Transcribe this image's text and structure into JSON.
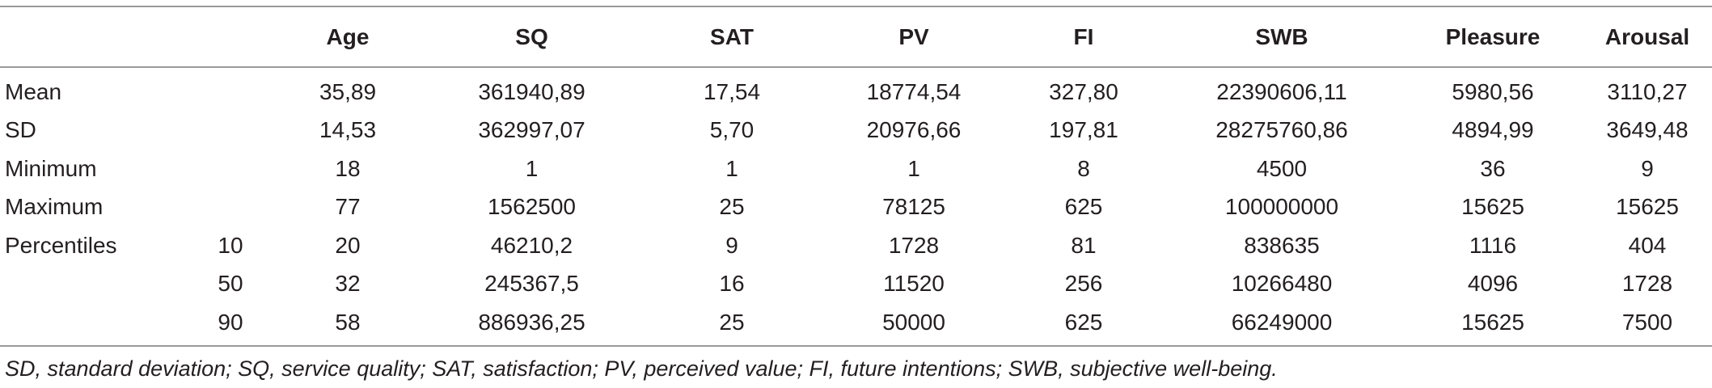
{
  "table": {
    "columns": [
      "",
      "",
      "Age",
      "SQ",
      "SAT",
      "PV",
      "FI",
      "SWB",
      "Pleasure",
      "Arousal"
    ],
    "rows": [
      [
        "Mean",
        "",
        "35,89",
        "361940,89",
        "17,54",
        "18774,54",
        "327,80",
        "22390606,11",
        "5980,56",
        "3110,27"
      ],
      [
        "SD",
        "",
        "14,53",
        "362997,07",
        "5,70",
        "20976,66",
        "197,81",
        "28275760,86",
        "4894,99",
        "3649,48"
      ],
      [
        "Minimum",
        "",
        "18",
        "1",
        "1",
        "1",
        "8",
        "4500",
        "36",
        "9"
      ],
      [
        "Maximum",
        "",
        "77",
        "1562500",
        "25",
        "78125",
        "625",
        "100000000",
        "15625",
        "15625"
      ],
      [
        "Percentiles",
        "10",
        "20",
        "46210,2",
        "9",
        "1728",
        "81",
        "838635",
        "1116",
        "404"
      ],
      [
        "",
        "50",
        "32",
        "245367,5",
        "16",
        "11520",
        "256",
        "10266480",
        "4096",
        "1728"
      ],
      [
        "",
        "90",
        "58",
        "886936,25",
        "25",
        "50000",
        "625",
        "66249000",
        "15625",
        "7500"
      ]
    ]
  },
  "footnote": "SD, standard deviation; SQ, service quality; SAT, satisfaction; PV, perceived value; FI, future intentions; SWB, subjective well-being."
}
